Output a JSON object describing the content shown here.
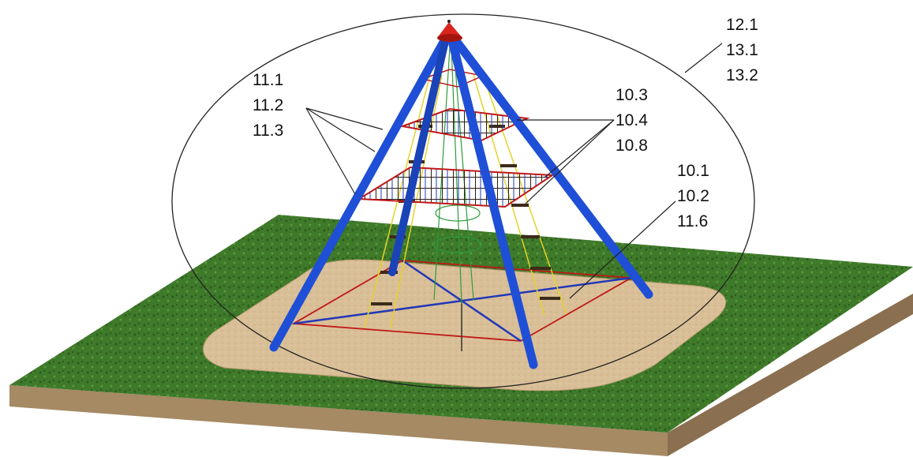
{
  "callouts": [
    {
      "id": "top",
      "lines": [
        "12.1",
        "13.1",
        "13.2"
      ]
    },
    {
      "id": "left",
      "lines": [
        "11.1",
        "11.2",
        "11.3"
      ]
    },
    {
      "id": "mid",
      "lines": [
        "10.3",
        "10.4",
        "10.8"
      ]
    },
    {
      "id": "right",
      "lines": [
        "10.1",
        "10.2",
        "11.6"
      ]
    }
  ],
  "colors": {
    "grass": "#3f7a2a",
    "grass_dark": "#2e5e1e",
    "soil_side": "#a58a64",
    "soil_side_dark": "#8a7050",
    "sand": "#d9bf97",
    "pole": "#1f4fd6",
    "cap": "#d9251d",
    "net": "#3b2b1a",
    "rope_yellow": "#e6d22a",
    "rope_red": "#c01818",
    "rope_blue": "#2238b8",
    "rope_green": "#2e9a3a"
  }
}
